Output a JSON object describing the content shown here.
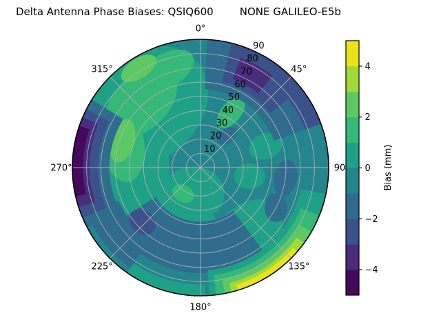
{
  "title": {
    "left": "Delta Antenna Phase Biases: QSIQ600",
    "right": "NONE GALILEO-E5b"
  },
  "chart_data": {
    "type": "polar_contour_filled",
    "title": "Delta Antenna Phase Biases: QSIQ600    NONE GALILEO-E5b",
    "value_label": "Bias (mm)",
    "units": "mm",
    "colormap": "viridis",
    "levels": [
      -5,
      -4,
      -3,
      -2,
      -1,
      0,
      1,
      2,
      3,
      4,
      5
    ],
    "palette": [
      "#46085c",
      "#472d7b",
      "#3b518b",
      "#2f6c8e",
      "#25858e",
      "#1fa187",
      "#36b878",
      "#5ec962",
      "#a2da37",
      "#e8e419"
    ],
    "background_band": {
      "index": 4,
      "value_range": [
        -1,
        0
      ]
    },
    "angular_ticks": [
      {
        "az": 0,
        "label": "0°"
      },
      {
        "az": 45,
        "label": "45°"
      },
      {
        "az": 90,
        "label": "90"
      },
      {
        "az": 135,
        "label": "135°"
      },
      {
        "az": 180,
        "label": "180°"
      },
      {
        "az": 225,
        "label": "225°"
      },
      {
        "az": 270,
        "label": "270°"
      },
      {
        "az": 315,
        "label": "315°"
      }
    ],
    "radial_ticks": [
      "10",
      "20",
      "30",
      "40",
      "50",
      "60",
      "70",
      "80",
      "90"
    ],
    "radial_max": 90,
    "radial_label_azimuth": 25.5,
    "grid": {
      "color": "#b0b0b0",
      "spoke_step_deg": 45,
      "ring_step": 10
    },
    "colorbar": {
      "label": "Bias (mm)",
      "ticks": [
        4,
        2,
        0,
        -2,
        -4
      ],
      "range": [
        -5,
        5
      ],
      "n_segments": 10
    },
    "regions": [
      {
        "shape": "ellipse",
        "band": 5,
        "value_range": [
          0,
          1
        ],
        "az": 318,
        "r": 58,
        "rx": 48,
        "ry": 38,
        "rot": -40
      },
      {
        "shape": "ellipse",
        "band": 5,
        "value_range": [
          0,
          1
        ],
        "az": 270,
        "r": 45,
        "rx": 23,
        "ry": 39,
        "rot": 0
      },
      {
        "shape": "ellipse",
        "band": 5,
        "value_range": [
          0,
          1
        ],
        "az": 215,
        "r": 45,
        "rx": 41,
        "ry": 27,
        "rot": 25
      },
      {
        "shape": "ellipse",
        "band": 5,
        "value_range": [
          0,
          1
        ],
        "az": 150,
        "r": 60,
        "rx": 34,
        "ry": 22,
        "rot": -50
      },
      {
        "shape": "ellipse",
        "band": 5,
        "value_range": [
          0,
          1
        ],
        "az": 100,
        "r": 35,
        "rx": 11,
        "ry": 9,
        "rot": 0
      },
      {
        "shape": "ellipse",
        "band": 5,
        "value_range": [
          0,
          1
        ],
        "az": 196,
        "r": 19,
        "rx": 22,
        "ry": 19,
        "rot": 0
      },
      {
        "shape": "ellipse",
        "band": 5,
        "value_range": [
          0,
          1
        ],
        "az": 72,
        "r": 48,
        "rx": 12,
        "ry": 9,
        "rot": -20
      },
      {
        "shape": "ellipse",
        "band": 6,
        "value_range": [
          1,
          2
        ],
        "az": 318,
        "r": 62,
        "rx": 30,
        "ry": 19,
        "rot": -45
      },
      {
        "shape": "ellipse",
        "band": 6,
        "value_range": [
          1,
          2
        ],
        "az": 287,
        "r": 57,
        "rx": 15,
        "ry": 27,
        "rot": -8
      },
      {
        "shape": "ellipse",
        "band": 6,
        "value_range": [
          1,
          2
        ],
        "az": 340,
        "r": 72,
        "rx": 22,
        "ry": 12,
        "rot": -30
      },
      {
        "shape": "ellipse",
        "band": 6,
        "value_range": [
          1,
          2
        ],
        "az": 214,
        "r": 22,
        "rx": 8,
        "ry": 6,
        "rot": 30
      },
      {
        "shape": "ellipse",
        "band": 6,
        "value_range": [
          1,
          2
        ],
        "az": 29,
        "r": 44,
        "rx": 13,
        "ry": 7,
        "rot": -50
      },
      {
        "shape": "ellipse",
        "band": 7,
        "value_range": [
          2,
          3
        ],
        "az": 289,
        "r": 58,
        "rx": 8.5,
        "ry": 15.5,
        "rot": 15
      },
      {
        "shape": "ellipse",
        "band": 7,
        "value_range": [
          2,
          3
        ],
        "az": 328,
        "r": 82,
        "rx": 14,
        "ry": 7,
        "rot": -33
      },
      {
        "shape": "sector",
        "band": 3,
        "value_range": [
          -2,
          -1
        ],
        "az": [
          3,
          70
        ],
        "r": [
          55,
          91
        ]
      },
      {
        "shape": "sector",
        "band": 2,
        "value_range": [
          -3,
          -2
        ],
        "az": [
          14,
          52
        ],
        "r": [
          62,
          91
        ]
      },
      {
        "shape": "sector",
        "band": 2,
        "value_range": [
          -3,
          -2
        ],
        "az": [
          52,
          70
        ],
        "r": [
          78,
          91
        ]
      },
      {
        "shape": "sector",
        "band": 1,
        "value_range": [
          -4,
          -3
        ],
        "az": [
          20,
          38
        ],
        "r": [
          66,
          82
        ]
      },
      {
        "shape": "ellipse",
        "band": 3,
        "value_range": [
          -2,
          -1
        ],
        "az": 97,
        "r": 60,
        "rx": 8,
        "ry": 13,
        "rot": 10
      },
      {
        "shape": "ellipse",
        "band": 3,
        "value_range": [
          -2,
          -1
        ],
        "az": 118,
        "r": 60,
        "rx": 8,
        "ry": 10,
        "rot": 0
      },
      {
        "shape": "ellipse",
        "band": 3,
        "value_range": [
          -2,
          -1
        ],
        "az": 40,
        "r": 29,
        "rx": 8,
        "ry": 5,
        "rot": -35
      },
      {
        "shape": "sector",
        "band": 3,
        "value_range": [
          -2,
          -1
        ],
        "az": [
          143,
          237
        ],
        "r": [
          38,
          74
        ]
      },
      {
        "shape": "sector",
        "band": 3,
        "value_range": [
          -2,
          -1
        ],
        "az": [
          215,
          248
        ],
        "r": [
          62,
          86
        ]
      },
      {
        "shape": "ellipse",
        "band": 2,
        "value_range": [
          -3,
          -2
        ],
        "az": 227,
        "r": 56,
        "rx": 10,
        "ry": 8,
        "rot": 40
      },
      {
        "shape": "sector",
        "band": 5,
        "value_range": [
          0,
          1
        ],
        "az": [
          178,
          215
        ],
        "r": [
          82,
          91
        ]
      },
      {
        "shape": "sector",
        "band": 5,
        "value_range": [
          0,
          1
        ],
        "az": [
          102,
          176
        ],
        "r": [
          72,
          91
        ]
      },
      {
        "shape": "sector",
        "band": 6,
        "value_range": [
          1,
          2
        ],
        "az": [
          112,
          173
        ],
        "r": [
          76,
          91
        ]
      },
      {
        "shape": "sector",
        "band": 7,
        "value_range": [
          2,
          3
        ],
        "az": [
          120,
          169
        ],
        "r": [
          80,
          91
        ]
      },
      {
        "shape": "sector",
        "band": 8,
        "value_range": [
          3,
          4
        ],
        "az": [
          126,
          166
        ],
        "r": [
          83.5,
          91
        ]
      },
      {
        "shape": "sector",
        "band": 9,
        "value_range": [
          4,
          5
        ],
        "az": [
          131,
          163
        ],
        "r": [
          86,
          91
        ]
      },
      {
        "shape": "sector",
        "band": 3,
        "value_range": [
          -2,
          -1
        ],
        "az": [
          242,
          302
        ],
        "r": [
          64,
          91
        ]
      },
      {
        "shape": "sector",
        "band": 2,
        "value_range": [
          -3,
          -2
        ],
        "az": [
          247,
          297
        ],
        "r": [
          72,
          91
        ]
      },
      {
        "shape": "sector",
        "band": 1,
        "value_range": [
          -4,
          -3
        ],
        "az": [
          252,
          293
        ],
        "r": [
          78,
          91
        ]
      },
      {
        "shape": "sector",
        "band": 0,
        "value_range": [
          -5,
          -4
        ],
        "az": [
          257,
          289
        ],
        "r": [
          82.5,
          91
        ]
      }
    ]
  }
}
